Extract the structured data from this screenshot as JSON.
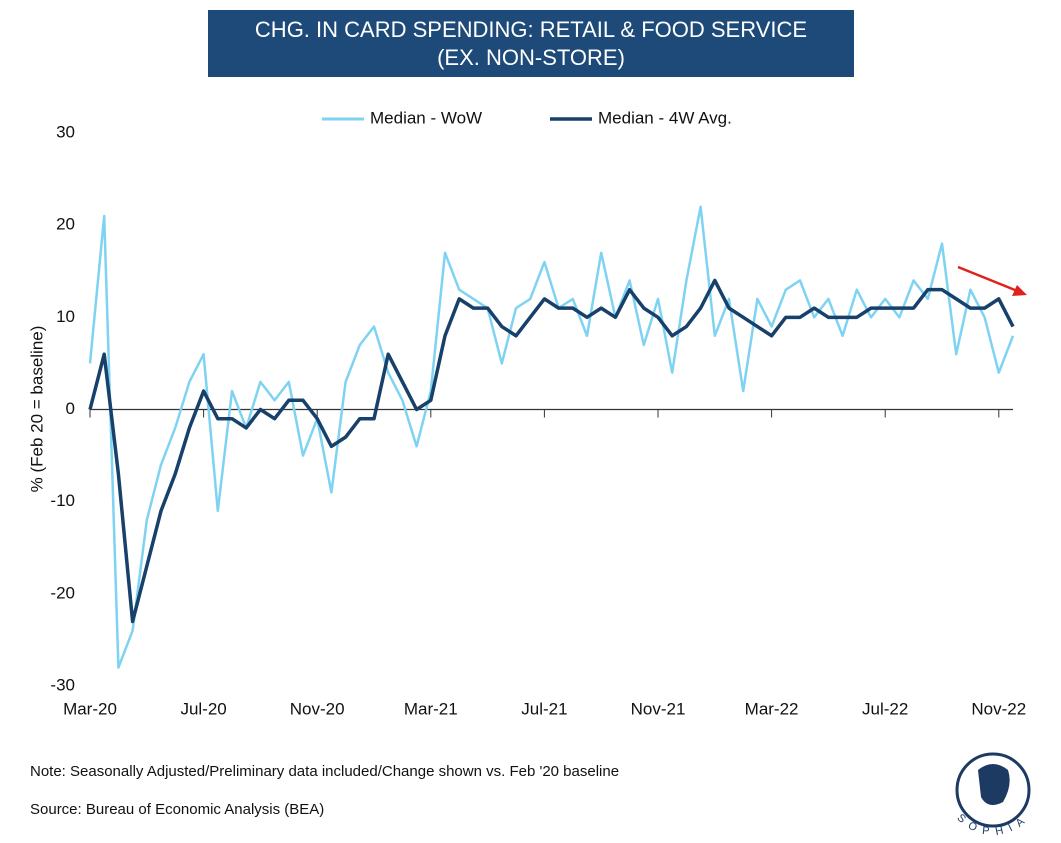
{
  "chart_data": {
    "type": "line",
    "title": "CHG. IN CARD SPENDING: RETAIL & FOOD SERVICE",
    "subtitle": "(EX. NON-STORE)",
    "ylabel": "% (Feb 20 = baseline)",
    "categories": [
      "Mar-20",
      null,
      null,
      null,
      null,
      null,
      null,
      null,
      "Jul-20",
      null,
      null,
      null,
      null,
      null,
      null,
      null,
      "Nov-20",
      null,
      null,
      null,
      null,
      null,
      null,
      null,
      "Mar-21",
      null,
      null,
      null,
      null,
      null,
      null,
      null,
      "Jul-21",
      null,
      null,
      null,
      null,
      null,
      null,
      null,
      "Nov-21",
      null,
      null,
      null,
      null,
      null,
      null,
      null,
      "Mar-22",
      null,
      null,
      null,
      null,
      null,
      null,
      null,
      "Jul-22",
      null,
      null,
      null,
      null,
      null,
      null,
      null,
      "Nov-22",
      null
    ],
    "series": [
      {
        "name": "Median - WoW",
        "color": "#7fd3f2",
        "values": [
          5,
          21,
          -28,
          -24,
          -12,
          -6,
          -2,
          3,
          6,
          -11,
          2,
          -2,
          3,
          1,
          3,
          -5,
          -1,
          -9,
          3,
          7,
          9,
          4,
          1,
          -4,
          2,
          17,
          13,
          12,
          11,
          5,
          11,
          12,
          16,
          11,
          12,
          8,
          17,
          10,
          14,
          7,
          12,
          4,
          14,
          22,
          8,
          12,
          2,
          12,
          9,
          13,
          14,
          10,
          12,
          8,
          13,
          10,
          12,
          10,
          14,
          12,
          18,
          6,
          13,
          10,
          4,
          8
        ]
      },
      {
        "name": "Median - 4W Avg.",
        "color": "#17406b",
        "values": [
          0,
          6,
          -7,
          -23,
          -17,
          -11,
          -7,
          -2,
          2,
          -1,
          -1,
          -2,
          0,
          -1,
          1,
          1,
          -1,
          -4,
          -3,
          -1,
          -1,
          6,
          3,
          0,
          1,
          8,
          12,
          11,
          11,
          9,
          8,
          10,
          12,
          11,
          11,
          10,
          11,
          10,
          13,
          11,
          10,
          8,
          9,
          11,
          14,
          11,
          10,
          9,
          8,
          10,
          10,
          11,
          10,
          10,
          10,
          11,
          11,
          11,
          11,
          13,
          13,
          12,
          11,
          11,
          12,
          9
        ]
      }
    ],
    "ylim": [
      -30,
      30
    ],
    "yticks": [
      -30,
      -20,
      -10,
      0,
      10,
      20,
      30
    ],
    "grid": false,
    "legend": "top",
    "note": "Note: Seasonally Adjusted/Preliminary data included/Change shown vs. Feb '20 baseline",
    "source": "Source: Bureau of Economic Analysis (BEA)",
    "logo": "SOPHIA"
  }
}
